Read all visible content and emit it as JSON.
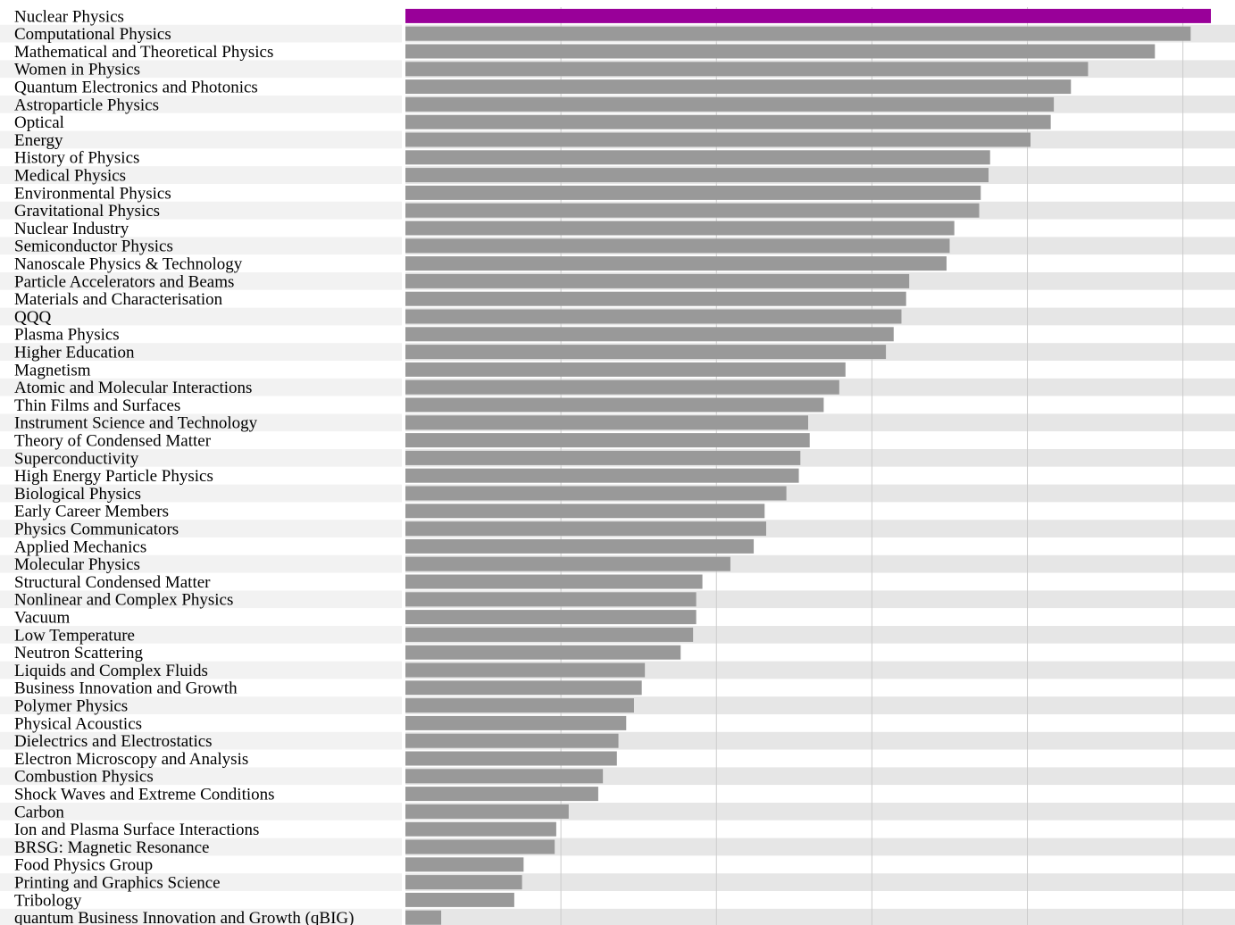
{
  "chart_data": {
    "type": "bar",
    "orientation": "horizontal",
    "title": "",
    "xlabel": "",
    "ylabel": "",
    "xlim": [
      0,
      530
    ],
    "grid": true,
    "highlight_color": "#990099",
    "bar_color": "#999999",
    "row_even_color": "#ffffff",
    "row_odd_color": "#e6e6e6",
    "gridline_color": "#cccccc",
    "highlight_index": 0,
    "categories": [
      "Nuclear Physics",
      "Computational Physics",
      "Mathematical and Theoretical Physics",
      "Women in Physics",
      "Quantum Electronics and Photonics",
      "Astroparticle Physics",
      "Optical",
      "Energy",
      "History of Physics",
      "Medical Physics",
      "Environmental Physics",
      "Gravitational Physics",
      "Nuclear Industry",
      "Semiconductor Physics",
      "Nanoscale Physics & Technology",
      "Particle Accelerators and Beams",
      "Materials and Characterisation",
      "QQQ",
      "Plasma Physics",
      "Higher Education",
      "Magnetism",
      "Atomic and Molecular Interactions",
      "Thin Films and Surfaces",
      "Instrument Science and Technology",
      "Theory of Condensed Matter",
      "Superconductivity",
      "High Energy Particle Physics",
      "Biological Physics",
      "Early Career Members",
      "Physics Communicators",
      "Applied Mechanics",
      "Molecular Physics",
      "Structural Condensed Matter",
      "Nonlinear and Complex Physics",
      "Vacuum",
      "Low Temperature",
      "Neutron Scattering",
      "Liquids and Complex Fluids",
      "Business Innovation and Growth",
      "Polymer Physics",
      "Physical Acoustics",
      "Dielectrics and Electrostatics",
      "Electron Microscopy and Analysis",
      "Combustion Physics",
      "Shock Waves and Extreme Conditions",
      "Carbon",
      "Ion and Plasma Surface Interactions",
      "BRSG: Magnetic Resonance",
      "Food Physics Group",
      "Printing and Graphics Science",
      "Tribology",
      "quantum Business Innovation and Growth (qBIG)"
    ],
    "values": [
      518,
      505,
      482,
      439,
      428,
      417,
      415,
      402,
      376,
      375,
      370,
      369,
      353,
      350,
      348,
      324,
      322,
      319,
      314,
      309,
      283,
      279,
      269,
      259,
      260,
      254,
      253,
      245,
      231,
      232,
      224,
      209,
      191,
      187,
      187,
      185,
      177,
      154,
      152,
      147,
      142,
      137,
      136,
      127,
      124,
      105,
      97,
      96,
      76,
      75,
      70,
      23
    ]
  }
}
